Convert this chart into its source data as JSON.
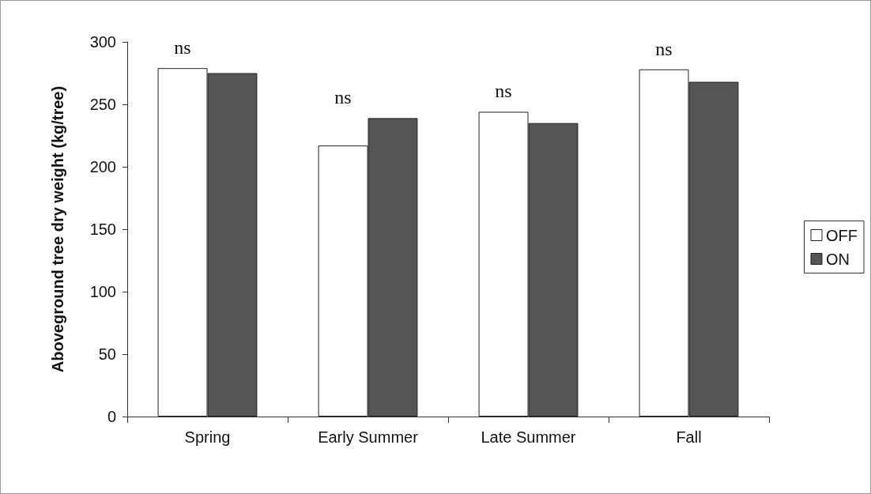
{
  "chart_data": {
    "type": "bar",
    "ylabel": "Aboveground tree dry weight (kg/tree)",
    "categories": [
      "Spring",
      "Early Summer",
      "Late Summer",
      "Fall"
    ],
    "series": [
      {
        "name": "OFF",
        "color": "#ffffff",
        "values": [
          279,
          217,
          244,
          278
        ]
      },
      {
        "name": "ON",
        "color": "#555555",
        "values": [
          275,
          239,
          235,
          268
        ]
      }
    ],
    "ylim": [
      0,
      300
    ],
    "yticks": [
      0,
      50,
      100,
      150,
      200,
      250,
      300
    ],
    "grid": false,
    "legend": "right",
    "annotations": [
      "ns",
      "ns",
      "ns",
      "ns"
    ]
  }
}
